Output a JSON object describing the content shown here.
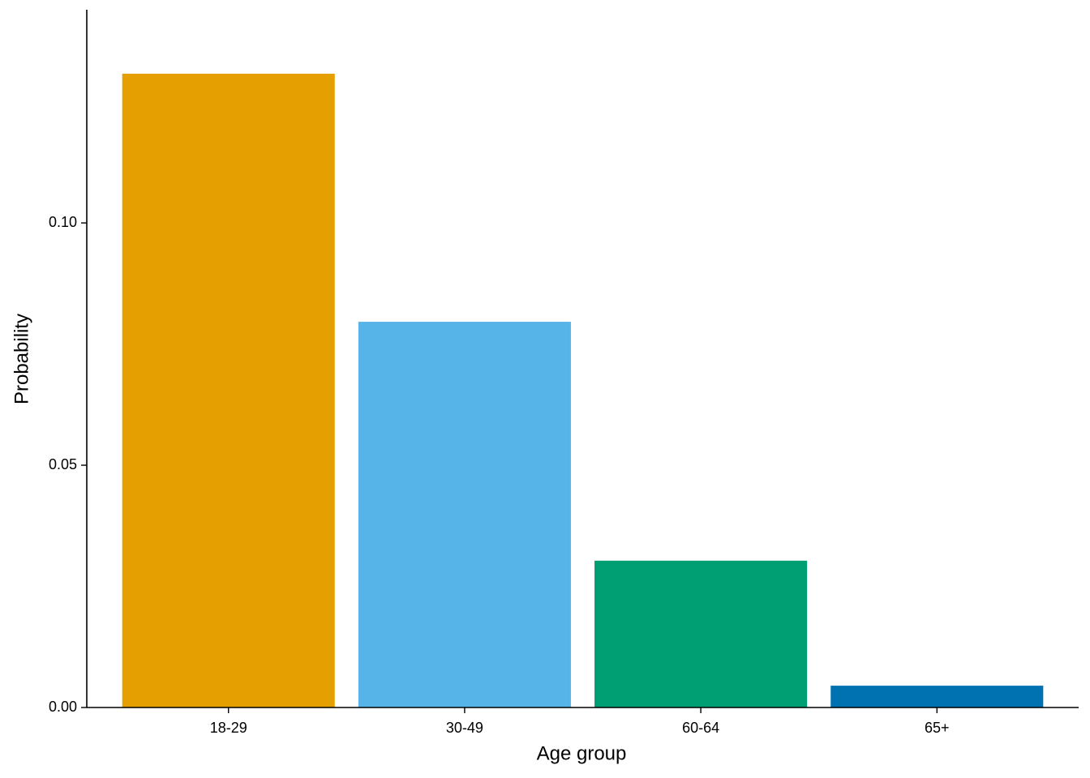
{
  "chart_data": {
    "type": "bar",
    "x_label": "Age group",
    "y_label": "Probability",
    "categories": [
      "18-29",
      "30-49",
      "60-64",
      "65+"
    ],
    "values": [
      0.1308,
      0.0796,
      0.0303,
      0.0045
    ],
    "colors": [
      "#E69F00",
      "#56B4E9",
      "#009E73",
      "#0072B2"
    ],
    "ylim": [
      0,
      0.144
    ],
    "yticks": [
      {
        "value": 0,
        "label": "0.00"
      },
      {
        "value": 0.05,
        "label": "0.05"
      },
      {
        "value": 0.1,
        "label": "0.10"
      }
    ],
    "grid": false
  }
}
